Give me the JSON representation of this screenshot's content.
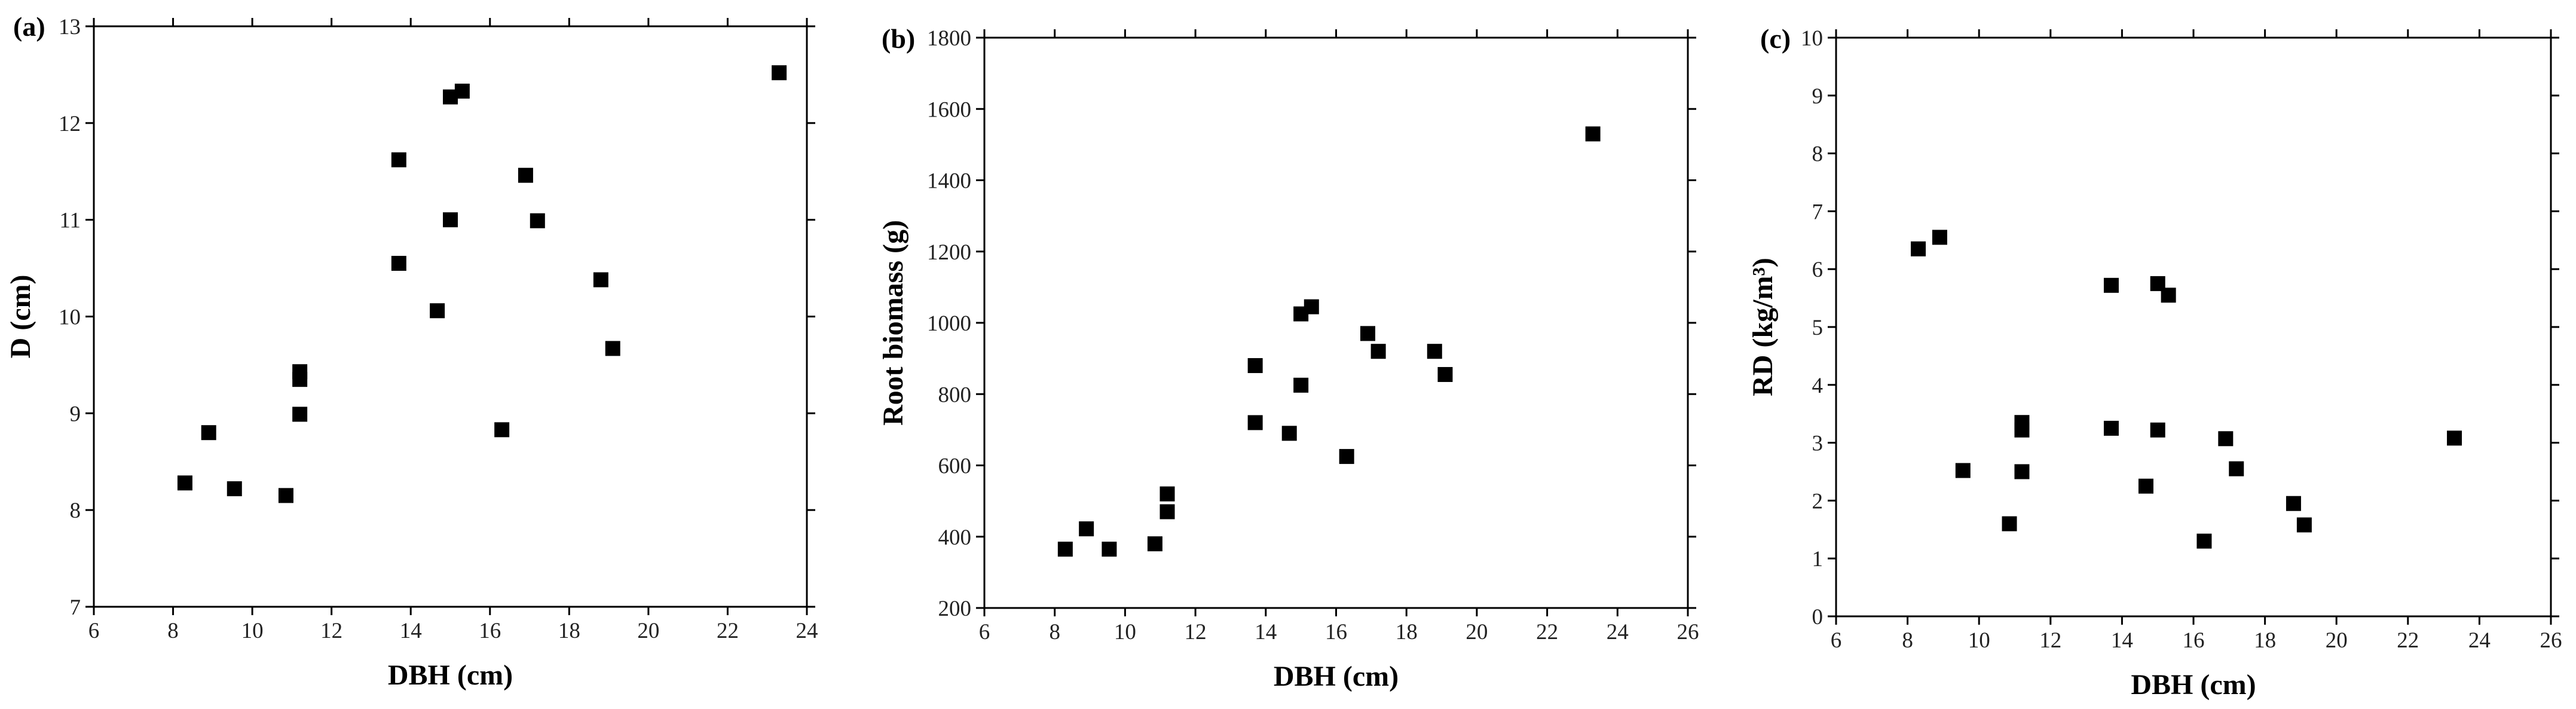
{
  "chart_data": [
    {
      "type": "scatter",
      "panel_label": "(a)",
      "xlabel": "DBH (cm)",
      "ylabel": "D (cm)",
      "color": "#000000",
      "x": [
        8.3,
        8.9,
        9.55,
        10.85,
        11.2,
        11.2,
        11.2,
        13.7,
        13.7,
        14.67,
        15.0,
        15.3,
        15.0,
        16.3,
        16.9,
        17.2,
        18.8,
        19.1,
        23.3
      ],
      "values": [
        8.28,
        8.8,
        8.22,
        8.15,
        9.43,
        9.35,
        8.99,
        11.62,
        10.55,
        10.06,
        12.27,
        12.33,
        11.0,
        8.83,
        11.46,
        10.99,
        10.38,
        9.67,
        12.52
      ],
      "xlim": [
        6,
        24
      ],
      "xticks": [
        6,
        8,
        10,
        12,
        14,
        16,
        18,
        20,
        22,
        24
      ],
      "ylim": [
        7,
        13
      ],
      "yticks": [
        7,
        8,
        9,
        10,
        11,
        12,
        13
      ]
    },
    {
      "type": "scatter",
      "panel_label": "(b)",
      "xlabel": "DBH (cm)",
      "ylabel": "Root biomass (g)",
      "color": "#000000",
      "x": [
        8.3,
        8.9,
        9.55,
        10.85,
        11.2,
        11.2,
        13.7,
        13.7,
        14.67,
        15.0,
        15.0,
        15.3,
        16.3,
        16.9,
        17.2,
        18.8,
        19.1,
        23.3
      ],
      "values": [
        365,
        422,
        365,
        380,
        520,
        470,
        880,
        720,
        690,
        1025,
        825,
        1045,
        625,
        970,
        920,
        920,
        855,
        1530
      ],
      "xlim": [
        6,
        26
      ],
      "xticks": [
        6,
        8,
        10,
        12,
        14,
        16,
        18,
        20,
        22,
        24,
        26
      ],
      "ylim": [
        200,
        1800
      ],
      "yticks": [
        200,
        400,
        600,
        800,
        1000,
        1200,
        1400,
        1600,
        1800
      ]
    },
    {
      "type": "scatter",
      "panel_label": "(c)",
      "xlabel": "DBH (cm)",
      "ylabel": "RD (kg/m³)",
      "color": "#000000",
      "x": [
        8.3,
        8.9,
        9.55,
        10.85,
        11.2,
        11.2,
        11.2,
        13.7,
        13.7,
        14.67,
        15.0,
        15.0,
        15.3,
        16.3,
        16.9,
        17.2,
        18.8,
        19.1,
        23.3
      ],
      "values": [
        6.35,
        6.55,
        2.52,
        1.6,
        3.35,
        3.22,
        2.5,
        5.72,
        3.25,
        2.25,
        5.75,
        3.22,
        5.55,
        1.3,
        3.07,
        2.55,
        1.95,
        1.58,
        3.08
      ],
      "xlim": [
        6,
        26
      ],
      "xticks": [
        6,
        8,
        10,
        12,
        14,
        16,
        18,
        20,
        22,
        24,
        26
      ],
      "ylim": [
        0,
        10
      ],
      "yticks": [
        0,
        1,
        2,
        3,
        4,
        5,
        6,
        7,
        8,
        9,
        10
      ]
    }
  ]
}
